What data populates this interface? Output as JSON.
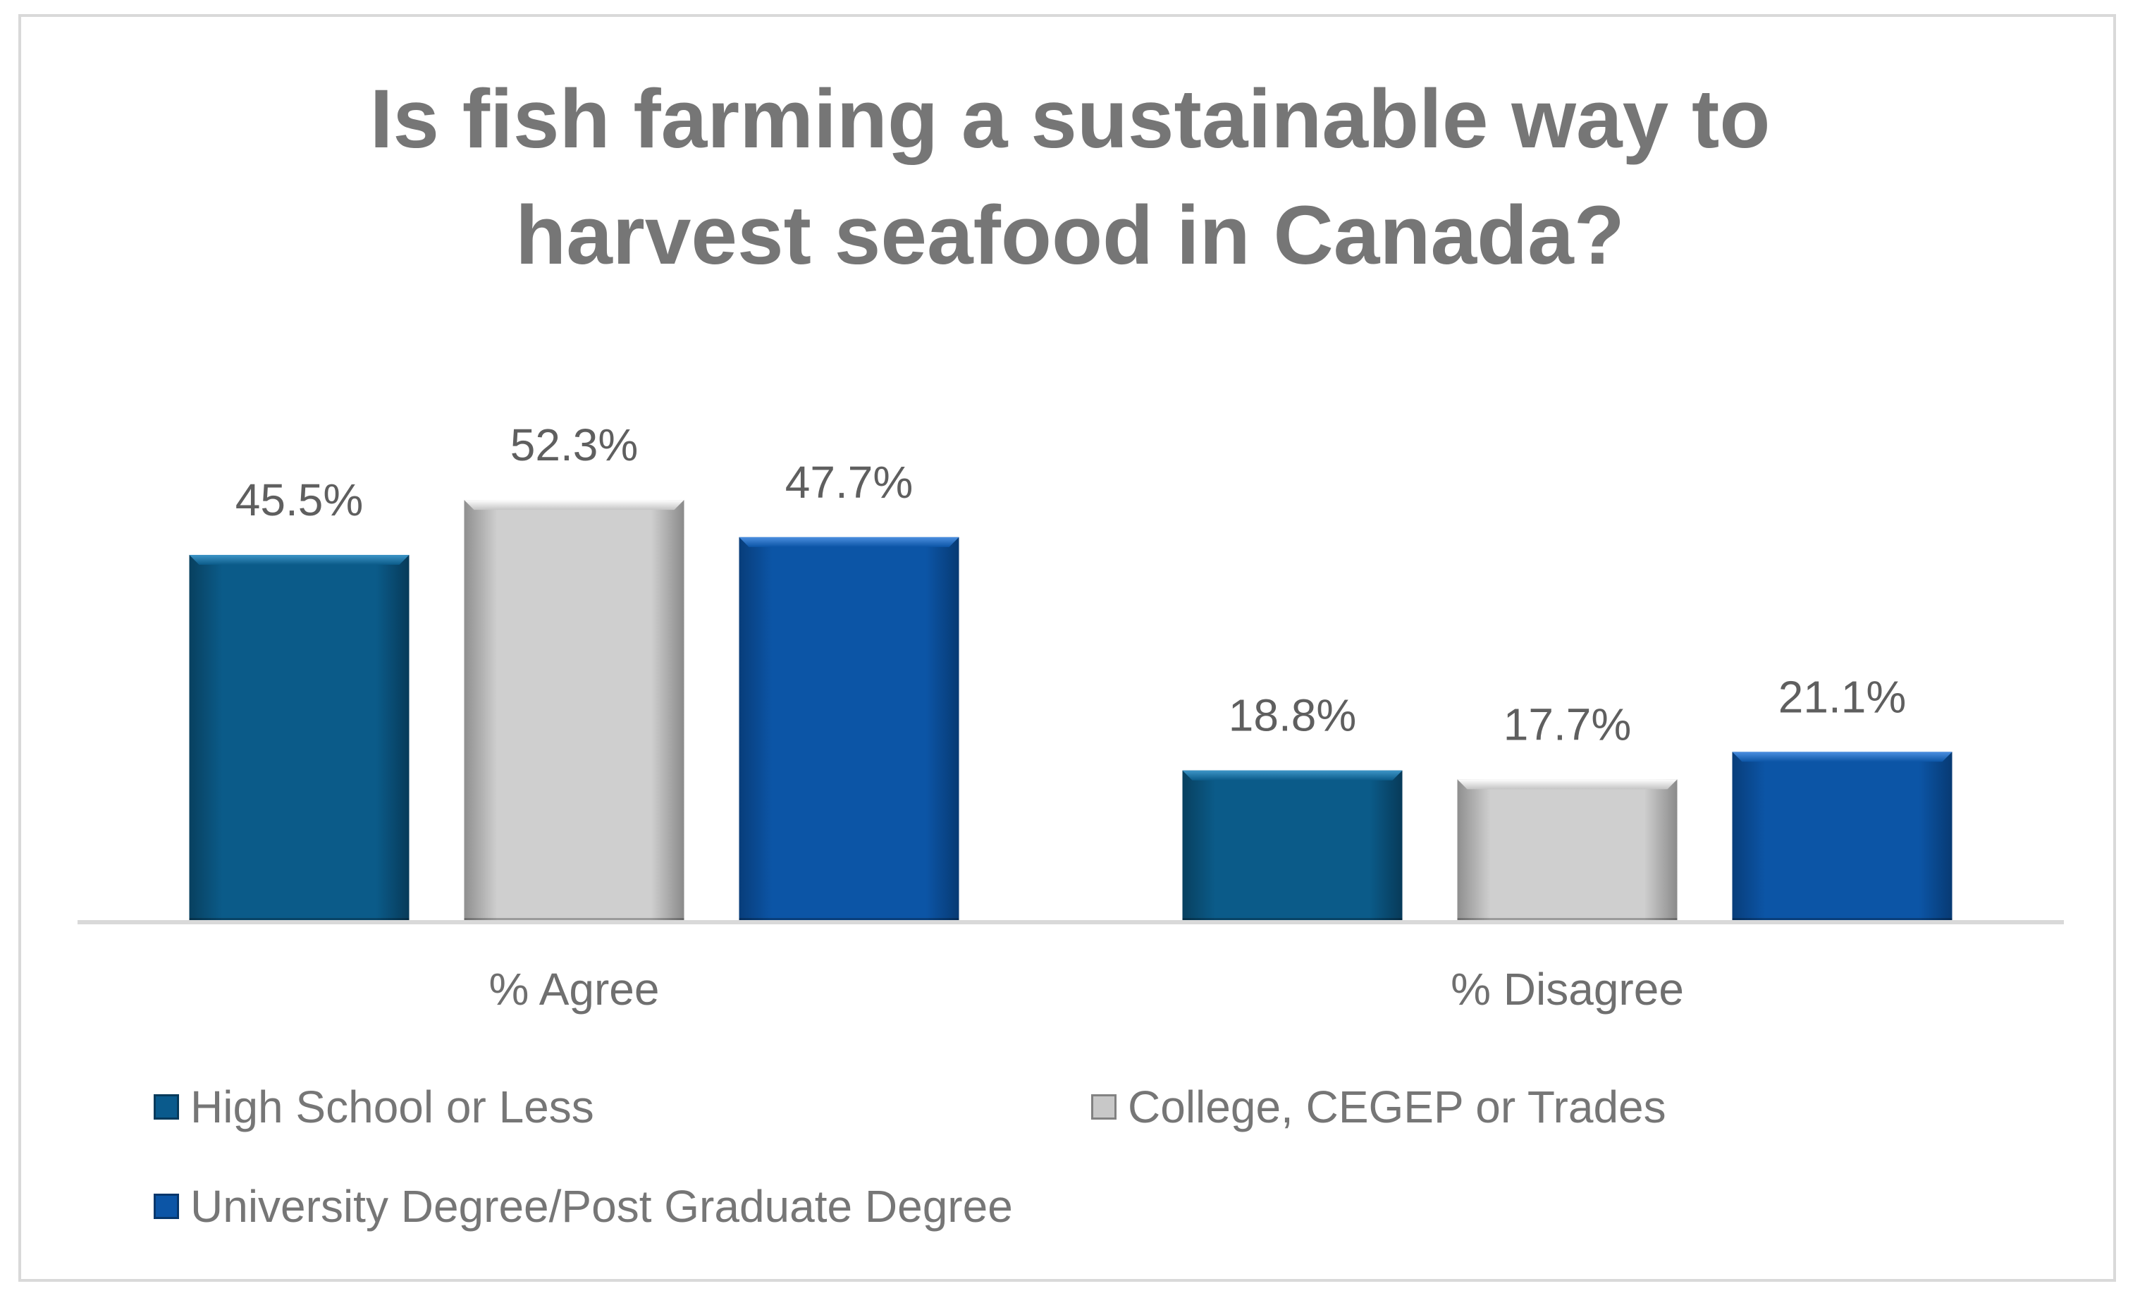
{
  "chart_data": {
    "type": "bar",
    "title_lines": [
      "Is fish farming a sustainable way to",
      "harvest seafood in Canada?"
    ],
    "categories": [
      "% Agree",
      "% Disagree"
    ],
    "series": [
      {
        "name": "High School or Less",
        "values": [
          45.5,
          18.8
        ],
        "labels": [
          "45.5%",
          "18.8%"
        ],
        "color": "#0a5a8c"
      },
      {
        "name": "College, CEGEP or Trades",
        "values": [
          52.3,
          17.7
        ],
        "labels": [
          "52.3%",
          "17.7%"
        ],
        "color": "#c8c8c8"
      },
      {
        "name": "University Degree/Post Graduate Degree",
        "values": [
          47.7,
          21.1
        ],
        "labels": [
          "47.7%",
          "21.1%"
        ],
        "color": "#0c55a6"
      }
    ],
    "ylim": [
      0,
      60
    ],
    "grid": false,
    "legend": "bottom"
  }
}
